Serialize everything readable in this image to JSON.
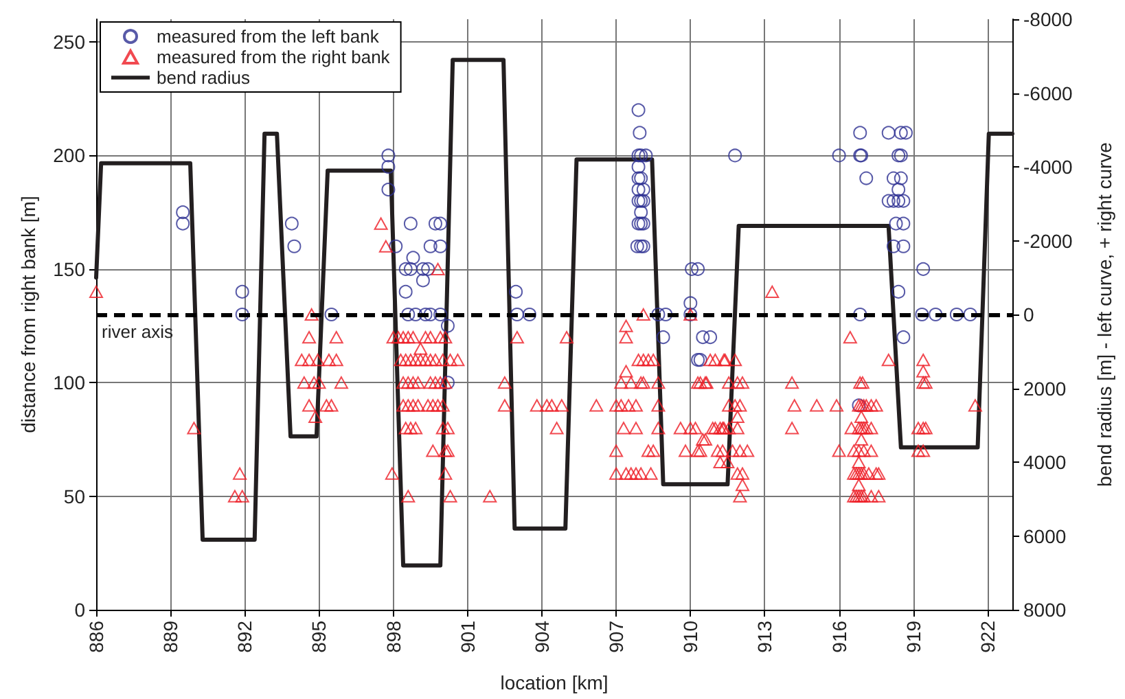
{
  "chart_data": {
    "type": "scatter",
    "xlabel": "location [km]",
    "ylabel": "distance from right bank [m]",
    "y2label": "bend radius [m] - left curve, + right curve",
    "xlim": [
      886,
      923
    ],
    "xticks": [
      886,
      889,
      892,
      895,
      898,
      901,
      904,
      907,
      910,
      913,
      916,
      919,
      922
    ],
    "ylim": [
      0,
      260
    ],
    "yticks": [
      0,
      50,
      100,
      150,
      200,
      250
    ],
    "y2lim": [
      8000,
      -8000
    ],
    "y2ticks": [
      -8000,
      -6000,
      -4000,
      -2000,
      0,
      2000,
      4000,
      6000,
      8000
    ],
    "grid": true,
    "legend": "top left",
    "ref_lines": [
      {
        "axis": "y",
        "value": 130,
        "label": "river axis",
        "color": "#000000",
        "line_style": "dashed"
      }
    ],
    "series": [
      {
        "name": "measured from the left bank",
        "marker": "circle",
        "color": "#2e3192",
        "x": [
          889.5,
          889.5,
          891.9,
          891.9,
          893.9,
          894.0,
          895.5,
          897.8,
          897.8,
          897.8,
          898.7,
          898.1,
          898.8,
          898.5,
          898.7,
          899.2,
          899.4,
          899.2,
          899.5,
          899.7,
          899.9,
          899.9,
          898.5,
          898.6,
          898.9,
          899.3,
          899.5,
          899.9,
          900.2,
          900.2,
          902.95,
          903.0,
          903.5,
          907.9,
          907.95,
          907.9,
          908.0,
          908.2,
          907.9,
          907.9,
          908.0,
          907.9,
          908.1,
          907.9,
          908.0,
          908.1,
          908.0,
          907.9,
          908.0,
          908.1,
          907.85,
          908.0,
          908.1,
          908.7,
          909.0,
          908.9,
          910.05,
          910.3,
          910.0,
          910.0,
          910.5,
          910.3,
          910.8,
          910.4,
          911.8,
          916.0,
          916.85,
          916.85,
          916.9,
          917.1,
          916.85,
          916.8,
          918.0,
          918.5,
          918.7,
          918.4,
          918.5,
          918.2,
          918.5,
          918.4,
          918.0,
          918.2,
          918.4,
          918.6,
          918.3,
          918.6,
          918.2,
          918.6,
          918.4,
          918.6,
          919.4,
          919.35,
          919.9,
          920.75,
          921.3
        ],
        "values": [
          175,
          170,
          140,
          130,
          170,
          160,
          130,
          200,
          195,
          185,
          170,
          160,
          155,
          150,
          150,
          150,
          150,
          145,
          160,
          170,
          170,
          160,
          140,
          130,
          130,
          130,
          130,
          130,
          125,
          100,
          140,
          130,
          130,
          220,
          210,
          200,
          200,
          200,
          195,
          190,
          190,
          185,
          185,
          180,
          180,
          180,
          175,
          170,
          170,
          170,
          160,
          160,
          160,
          130,
          130,
          120,
          150,
          150,
          135,
          130,
          120,
          110,
          120,
          110,
          200,
          200,
          210,
          200,
          200,
          190,
          130,
          90,
          210,
          210,
          210,
          200,
          200,
          190,
          190,
          185,
          180,
          180,
          180,
          180,
          170,
          170,
          160,
          160,
          140,
          120,
          150,
          130,
          130,
          130,
          130
        ]
      },
      {
        "name": "measured from the right bank",
        "marker": "triangle",
        "color": "#ed1c24",
        "x": [
          886.0,
          889.95,
          891.8,
          891.6,
          891.9,
          894.7,
          894.6,
          895.7,
          894.3,
          894.6,
          894.95,
          895.4,
          895.7,
          894.4,
          894.8,
          895.0,
          895.9,
          894.6,
          895.3,
          895.5,
          894.85,
          897.5,
          897.7,
          897.95,
          898.6,
          898.0,
          898.2,
          898.4,
          898.6,
          898.8,
          899.3,
          899.5,
          899.9,
          900.1,
          899.1,
          898.3,
          898.5,
          898.7,
          898.9,
          899.1,
          899.3,
          899.5,
          899.7,
          900.0,
          900.3,
          900.6,
          898.4,
          898.6,
          898.8,
          899.0,
          899.5,
          899.7,
          899.9,
          900.1,
          898.4,
          898.6,
          898.8,
          899.0,
          899.4,
          899.6,
          899.8,
          900.0,
          898.5,
          898.7,
          898.9,
          900.0,
          900.2,
          899.8,
          899.6,
          900.1,
          900.2,
          900.1,
          900.3,
          901.9,
          902.5,
          902.5,
          903.0,
          903.8,
          904.2,
          904.4,
          904.8,
          904.6,
          905.0,
          906.2,
          908.1,
          910.0,
          907.4,
          907.4,
          907.9,
          908.1,
          908.3,
          908.5,
          907.4,
          907.2,
          907.6,
          908.0,
          908.1,
          908.7,
          907.0,
          907.2,
          907.5,
          907.8,
          908.7,
          907.3,
          907.8,
          908.7,
          907.0,
          908.3,
          908.5,
          907.0,
          907.4,
          907.6,
          907.8,
          908.0,
          908.4,
          910.8,
          911.4,
          910.3,
          910.6,
          909.6,
          910.2,
          910.9,
          911.3,
          909.8,
          910.3,
          911.3,
          910.5,
          911.5,
          911.8,
          911.0,
          911.35,
          911.8,
          910.4,
          910.65,
          911.55,
          911.9,
          912.1,
          911.55,
          912.0,
          911.9,
          910.0,
          911.0,
          911.2,
          911.35,
          911.55,
          911.9,
          910.4,
          911.1,
          911.7,
          912.0,
          912.3,
          910.6,
          911.2,
          911.9,
          912.1,
          912.1,
          912.0,
          913.3,
          914.1,
          914.2,
          914.1,
          915.1,
          915.9,
          916.45,
          916.85,
          916.95,
          916.8,
          916.9,
          917.0,
          917.1,
          917.3,
          917.5,
          916.5,
          916.8,
          916.9,
          917.0,
          917.1,
          917.3,
          916.9,
          916.9,
          916.0,
          916.6,
          916.8,
          917.0,
          917.3,
          916.8,
          916.6,
          916.7,
          916.8,
          916.9,
          917.0,
          917.2,
          917.5,
          917.6,
          916.8,
          916.6,
          916.7,
          916.8,
          916.9,
          917.0,
          917.3,
          917.6,
          918.0,
          919.4,
          919.4,
          919.4,
          919.5,
          919.2,
          919.4,
          919.5,
          919.2,
          919.4,
          921.5
        ],
        "values": [
          140,
          80,
          60,
          50,
          50,
          130,
          120,
          120,
          110,
          110,
          110,
          110,
          110,
          100,
          100,
          100,
          100,
          90,
          90,
          90,
          85,
          170,
          160,
          60,
          50,
          120,
          120,
          120,
          120,
          120,
          120,
          120,
          120,
          120,
          115,
          110,
          110,
          110,
          110,
          110,
          110,
          110,
          110,
          110,
          110,
          110,
          100,
          100,
          100,
          100,
          100,
          100,
          100,
          100,
          90,
          90,
          90,
          90,
          90,
          90,
          90,
          90,
          80,
          80,
          80,
          80,
          80,
          150,
          70,
          70,
          70,
          60,
          50,
          50,
          100,
          90,
          120,
          90,
          90,
          90,
          90,
          80,
          120,
          90,
          130,
          130,
          125,
          120,
          110,
          110,
          110,
          110,
          105,
          100,
          100,
          100,
          100,
          100,
          90,
          90,
          90,
          90,
          90,
          80,
          80,
          80,
          70,
          70,
          70,
          60,
          60,
          60,
          60,
          60,
          60,
          110,
          110,
          100,
          100,
          80,
          80,
          80,
          80,
          70,
          70,
          70,
          75,
          65,
          90,
          110,
          110,
          110,
          100,
          100,
          100,
          100,
          100,
          90,
          90,
          85,
          80,
          80,
          80,
          80,
          80,
          80,
          70,
          70,
          70,
          70,
          70,
          75,
          65,
          60,
          60,
          55,
          50,
          140,
          100,
          90,
          80,
          90,
          90,
          120,
          100,
          100,
          90,
          90,
          90,
          90,
          90,
          90,
          80,
          80,
          80,
          80,
          80,
          80,
          85,
          75,
          70,
          70,
          70,
          70,
          70,
          65,
          60,
          60,
          60,
          60,
          60,
          60,
          60,
          60,
          55,
          50,
          50,
          50,
          50,
          50,
          50,
          50,
          110,
          110,
          105,
          100,
          100,
          80,
          80,
          80,
          70,
          70,
          90
        ]
      },
      {
        "name": "bend radius",
        "type": "line",
        "axis": "y2",
        "marker": "none",
        "line_style": "solid",
        "color": "#231f20",
        "x": [
          886,
          886.2,
          889.8,
          890.3,
          892.4,
          892.8,
          893.3,
          893.85,
          894.9,
          895.35,
          897.9,
          898.4,
          899.9,
          900.4,
          902.45,
          902.9,
          904.95,
          905.4,
          908.45,
          908.9,
          911.5,
          911.95,
          918.0,
          918.5,
          921.6,
          922.05,
          923
        ],
        "values": [
          -1000,
          -4100,
          -4100,
          6100,
          6100,
          -4900,
          -4900,
          3300,
          3300,
          -3900,
          -3900,
          6800,
          6800,
          -6900,
          -6900,
          5800,
          5800,
          -4200,
          -4200,
          4600,
          4600,
          -2400,
          -2400,
          3600,
          3600,
          -4900,
          -4900
        ]
      }
    ]
  }
}
